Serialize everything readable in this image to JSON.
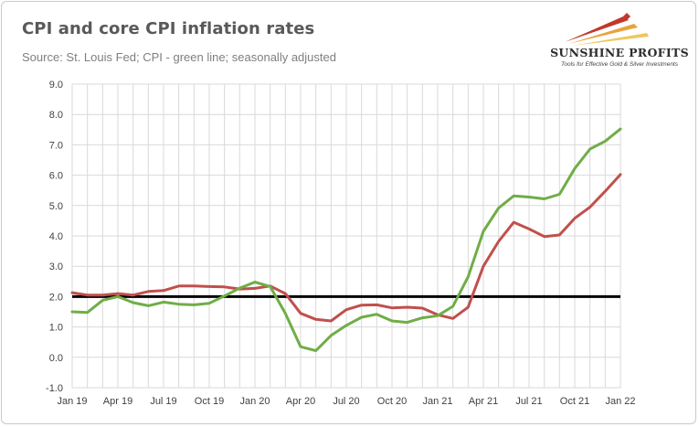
{
  "header": {
    "title": "CPI and core CPI inflation rates",
    "subtitle": "Source: St. Louis Fed; CPI - green line; seasonally adjusted"
  },
  "logo": {
    "name": "SUNSHINE PROFITS",
    "tagline": "Tools for Effective Gold & Silver Investments",
    "colors": [
      "#c0392b",
      "#e8a33c",
      "#f0c75e",
      "#ffffff"
    ]
  },
  "chart_data": {
    "type": "line",
    "title": "CPI and core CPI inflation rates",
    "x_tick_labels": [
      "Jan 19",
      "Apr 19",
      "Jul 19",
      "Oct 19",
      "Jan 20",
      "Apr 20",
      "Jul 20",
      "Oct 20",
      "Jan 21",
      "Apr 21",
      "Jul 21",
      "Oct 21",
      "Jan 22"
    ],
    "y_tick_labels": [
      "-1.0",
      "0.0",
      "1.0",
      "2.0",
      "3.0",
      "4.0",
      "5.0",
      "6.0",
      "7.0",
      "8.0",
      "9.0"
    ],
    "ylim": [
      -1,
      9
    ],
    "grid": true,
    "reference_line": {
      "y": 2.0,
      "color": "#000000"
    },
    "x": [
      "2019-01",
      "2019-02",
      "2019-03",
      "2019-04",
      "2019-05",
      "2019-06",
      "2019-07",
      "2019-08",
      "2019-09",
      "2019-10",
      "2019-11",
      "2019-12",
      "2020-01",
      "2020-02",
      "2020-03",
      "2020-04",
      "2020-05",
      "2020-06",
      "2020-07",
      "2020-08",
      "2020-09",
      "2020-10",
      "2020-11",
      "2020-12",
      "2021-01",
      "2021-02",
      "2021-03",
      "2021-04",
      "2021-05",
      "2021-06",
      "2021-07",
      "2021-08",
      "2021-09",
      "2021-10",
      "2021-11",
      "2021-12",
      "2022-01"
    ],
    "series": [
      {
        "color": "#70ad47",
        "values": [
          1.5,
          1.48,
          1.88,
          2.0,
          1.8,
          1.7,
          1.82,
          1.75,
          1.73,
          1.78,
          2.02,
          2.28,
          2.48,
          2.33,
          1.45,
          0.35,
          0.22,
          0.72,
          1.05,
          1.32,
          1.42,
          1.2,
          1.15,
          1.3,
          1.37,
          1.68,
          2.65,
          4.15,
          4.92,
          5.32,
          5.28,
          5.22,
          5.37,
          6.22,
          6.86,
          7.12,
          7.52
        ]
      },
      {
        "color": "#c0504d",
        "values": [
          2.13,
          2.05,
          2.05,
          2.1,
          2.05,
          2.17,
          2.2,
          2.35,
          2.35,
          2.33,
          2.32,
          2.25,
          2.27,
          2.35,
          2.1,
          1.45,
          1.25,
          1.2,
          1.57,
          1.72,
          1.73,
          1.63,
          1.65,
          1.62,
          1.4,
          1.28,
          1.65,
          3.0,
          3.82,
          4.45,
          4.23,
          3.98,
          4.03,
          4.58,
          4.95,
          5.47,
          6.02
        ]
      }
    ]
  }
}
